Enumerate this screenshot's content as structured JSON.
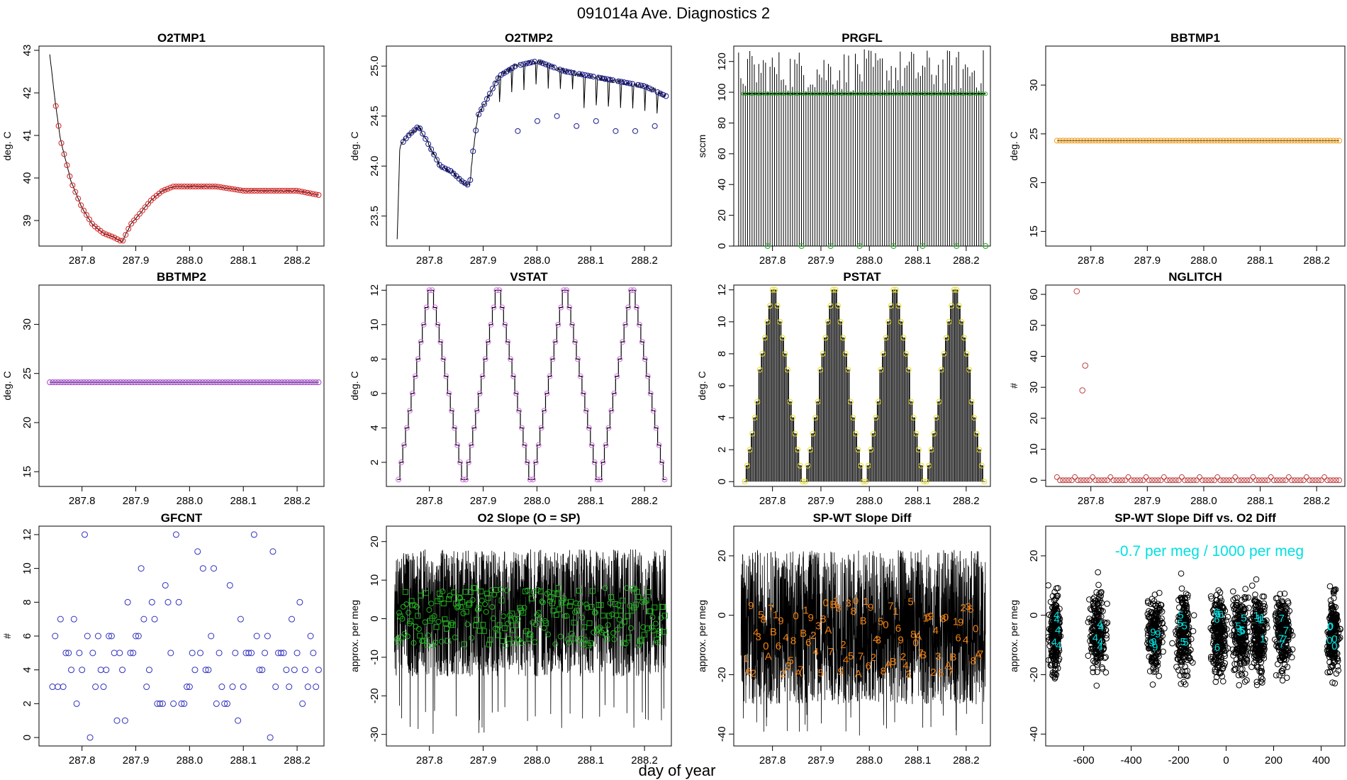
{
  "figure": {
    "title": "091014a   Ave. Diagnostics 2",
    "xlabel": "day of year"
  },
  "chart_data": [
    {
      "id": "o2tmp1",
      "type": "line",
      "title": "O2TMP1",
      "ylabel": "deg. C",
      "xlim": [
        287.72,
        288.25
      ],
      "ylim": [
        38.4,
        43.1
      ],
      "xticks": [
        287.8,
        287.9,
        288.0,
        288.1,
        288.2
      ],
      "xtick_labels": [
        "287.8",
        "287.9",
        "288.0",
        "288.1",
        "288.2"
      ],
      "yticks": [
        39,
        40,
        41,
        42,
        43
      ],
      "ytick_labels": [
        "39",
        "40",
        "41",
        "42",
        "43"
      ],
      "line_color": "#000000",
      "marker_color": "#d62020",
      "marker": "circle",
      "series": [
        {
          "x": [
            287.74,
            287.75,
            287.76,
            287.78,
            287.8,
            287.82,
            287.84,
            287.86,
            287.875,
            287.89,
            287.91,
            287.93,
            287.95,
            287.97,
            288.0,
            288.05,
            288.1,
            288.15,
            288.2,
            288.24
          ],
          "y": [
            42.9,
            41.8,
            40.9,
            39.9,
            39.3,
            38.9,
            38.7,
            38.6,
            38.5,
            38.9,
            39.2,
            39.5,
            39.7,
            39.8,
            39.8,
            39.8,
            39.7,
            39.7,
            39.7,
            39.6
          ]
        }
      ]
    },
    {
      "id": "o2tmp2",
      "type": "line",
      "title": "O2TMP2",
      "ylabel": "deg. C",
      "xlim": [
        287.72,
        288.25
      ],
      "ylim": [
        23.2,
        25.2
      ],
      "xticks": [
        287.8,
        287.9,
        288.0,
        288.1,
        288.2
      ],
      "xtick_labels": [
        "287.8",
        "287.9",
        "288.0",
        "288.1",
        "288.2"
      ],
      "yticks": [
        23.5,
        24.0,
        24.5,
        25.0
      ],
      "ytick_labels": [
        "23.5",
        "24.0",
        "24.5",
        "25.0"
      ],
      "line_color": "#000000",
      "marker_color": "#1a1a8c",
      "marker": "circle",
      "series": [
        {
          "x": [
            287.74,
            287.745,
            287.76,
            287.78,
            287.8,
            287.82,
            287.84,
            287.86,
            287.875,
            287.88,
            287.89,
            287.91,
            287.93,
            287.96,
            288.0,
            288.05,
            288.1,
            288.15,
            288.2,
            288.24
          ],
          "y": [
            23.25,
            24.2,
            24.3,
            24.4,
            24.2,
            24.0,
            23.95,
            23.85,
            23.8,
            24.1,
            24.5,
            24.7,
            24.9,
            25.0,
            25.05,
            24.95,
            24.9,
            24.85,
            24.8,
            24.7
          ]
        }
      ],
      "dip_minima": [
        24.35,
        24.4,
        24.45,
        24.5,
        24.4,
        24.45,
        24.35,
        24.45,
        24.5,
        24.4,
        24.45,
        24.35
      ]
    },
    {
      "id": "prgfl",
      "type": "bar",
      "title": "PRGFL",
      "ylabel": "sccm",
      "xlim": [
        287.72,
        288.25
      ],
      "ylim": [
        0,
        130
      ],
      "xticks": [
        287.8,
        287.9,
        288.0,
        288.1,
        288.2
      ],
      "xtick_labels": [
        "287.8",
        "287.9",
        "288.0",
        "288.1",
        "288.2"
      ],
      "yticks": [
        0,
        20,
        40,
        60,
        80,
        100,
        120
      ],
      "ytick_labels": [
        "0",
        "20",
        "40",
        "60",
        "80",
        "100",
        "120"
      ],
      "line_color": "#000000",
      "marker_color": "#22aa22",
      "marker": "circle",
      "bar_range": [
        100,
        128
      ],
      "typical_value": 99,
      "zero_points_x": [
        287.79,
        287.86,
        287.92,
        287.98,
        288.05,
        288.11,
        288.18,
        288.24
      ]
    },
    {
      "id": "bbtmp1",
      "type": "line",
      "title": "BBTMP1",
      "ylabel": "deg. C",
      "xlim": [
        287.72,
        288.25
      ],
      "ylim": [
        13.5,
        34
      ],
      "xticks": [
        287.8,
        287.9,
        288.0,
        288.1,
        288.2
      ],
      "xtick_labels": [
        "287.8",
        "287.9",
        "288.0",
        "288.1",
        "288.2"
      ],
      "yticks": [
        15,
        20,
        25,
        30
      ],
      "ytick_labels": [
        "15",
        "20",
        "25",
        "30"
      ],
      "line_color": "#000000",
      "marker_color": "#f0a020",
      "marker": "circle",
      "constant_value": 24.3
    },
    {
      "id": "bbtmp2",
      "type": "line",
      "title": "BBTMP2",
      "ylabel": "deg. C",
      "xlim": [
        287.72,
        288.25
      ],
      "ylim": [
        13.5,
        34
      ],
      "xticks": [
        287.8,
        287.9,
        288.0,
        288.1,
        288.2
      ],
      "xtick_labels": [
        "287.8",
        "287.9",
        "288.0",
        "288.1",
        "288.2"
      ],
      "yticks": [
        15,
        20,
        25,
        30
      ],
      "ytick_labels": [
        "15",
        "20",
        "25",
        "30"
      ],
      "line_color": "#000000",
      "marker_color": "#a040d0",
      "marker": "circle",
      "constant_value": 24.1
    },
    {
      "id": "vstat",
      "type": "line",
      "title": "VSTAT",
      "ylabel": "deg. C",
      "xlim": [
        287.72,
        288.25
      ],
      "ylim": [
        0.6,
        12.3
      ],
      "xticks": [
        287.8,
        287.9,
        288.0,
        288.1,
        288.2
      ],
      "xtick_labels": [
        "287.8",
        "287.9",
        "288.0",
        "288.1",
        "288.2"
      ],
      "yticks": [
        2,
        4,
        6,
        8,
        10,
        12
      ],
      "ytick_labels": [
        "2",
        "4",
        "6",
        "8",
        "10",
        "12"
      ],
      "line_color": "#000000",
      "marker_color": "#d070e0",
      "marker": "circle",
      "cycle_period": 0.125,
      "cycle_start": 287.74,
      "min_value": 1,
      "max_value": 12
    },
    {
      "id": "pstat",
      "type": "bar",
      "title": "PSTAT",
      "ylabel": "deg. C",
      "xlim": [
        287.72,
        288.25
      ],
      "ylim": [
        -0.3,
        12.3
      ],
      "xticks": [
        287.8,
        287.9,
        288.0,
        288.1,
        288.2
      ],
      "xtick_labels": [
        "287.8",
        "287.9",
        "288.0",
        "288.1",
        "288.2"
      ],
      "yticks": [
        0,
        2,
        4,
        6,
        8,
        10,
        12
      ],
      "ytick_labels": [
        "0",
        "2",
        "4",
        "6",
        "8",
        "10",
        "12"
      ],
      "line_color": "#000000",
      "marker_color": "#e8e020",
      "marker": "circle",
      "cycle_period": 0.125,
      "cycle_start": 287.74,
      "min_value": 0,
      "max_value": 12
    },
    {
      "id": "nglitch",
      "type": "scatter",
      "title": "NGLITCH",
      "ylabel": "#",
      "xlim": [
        287.72,
        288.25
      ],
      "ylim": [
        -2,
        63
      ],
      "xticks": [
        287.8,
        287.9,
        288.0,
        288.1,
        288.2
      ],
      "xtick_labels": [
        "287.8",
        "287.9",
        "288.0",
        "288.1",
        "288.2"
      ],
      "yticks": [
        0,
        10,
        20,
        30,
        40,
        50,
        60
      ],
      "ytick_labels": [
        "0",
        "10",
        "20",
        "30",
        "40",
        "50",
        "60"
      ],
      "marker_color": "#c04040",
      "marker": "circle",
      "series": [
        {
          "x": [
            287.775,
            287.785,
            287.79
          ],
          "y": [
            61,
            29,
            37
          ]
        }
      ],
      "baseline_value": 0
    },
    {
      "id": "gfcnt",
      "type": "scatter",
      "title": "GFCNT",
      "ylabel": "#",
      "xlim": [
        287.72,
        288.25
      ],
      "ylim": [
        -0.5,
        12.5
      ],
      "xticks": [
        287.8,
        287.9,
        288.0,
        288.1,
        288.2
      ],
      "xtick_labels": [
        "287.8",
        "287.9",
        "288.0",
        "288.1",
        "288.2"
      ],
      "yticks": [
        0,
        2,
        4,
        6,
        8,
        10,
        12
      ],
      "ytick_labels": [
        "0",
        "2",
        "4",
        "6",
        "8",
        "10",
        "12"
      ],
      "marker_color": "#3030c0",
      "marker": "circle",
      "series": [
        {
          "x": [
            287.745,
            287.75,
            287.755,
            287.76,
            287.765,
            287.77,
            287.775,
            287.78,
            287.785,
            287.79,
            287.795,
            287.8,
            287.805,
            287.81,
            287.815,
            287.82,
            287.825,
            287.83,
            287.835,
            287.84,
            287.845,
            287.85,
            287.855,
            287.86,
            287.865,
            287.87,
            287.875,
            287.88,
            287.885,
            287.89,
            287.895,
            287.9,
            287.905,
            287.91,
            287.915,
            287.92,
            287.925,
            287.93,
            287.935,
            287.94,
            287.945,
            287.95,
            287.955,
            287.96,
            287.965,
            287.97,
            287.975,
            287.98,
            287.985,
            287.99,
            287.995,
            288.0,
            288.005,
            288.01,
            288.015,
            288.02,
            288.025,
            288.03,
            288.035,
            288.04,
            288.045,
            288.05,
            288.055,
            288.06,
            288.065,
            288.07,
            288.075,
            288.08,
            288.085,
            288.09,
            288.095,
            288.1,
            288.105,
            288.11,
            288.115,
            288.12,
            288.125,
            288.13,
            288.135,
            288.14,
            288.145,
            288.15,
            288.155,
            288.16,
            288.165,
            288.17,
            288.175,
            288.18,
            288.185,
            288.19,
            288.195,
            288.2,
            288.205,
            288.21,
            288.215,
            288.22,
            288.225,
            288.23,
            288.235,
            288.24
          ],
          "y": [
            3,
            6,
            3,
            7,
            3,
            5,
            5,
            4,
            7,
            2,
            5,
            4,
            12,
            6,
            0,
            5,
            3,
            6,
            4,
            3,
            4,
            6,
            6,
            5,
            1,
            5,
            4,
            1,
            8,
            5,
            5,
            6,
            6,
            10,
            7,
            3,
            4,
            8,
            7,
            2,
            2,
            2,
            9,
            8,
            5,
            2,
            12,
            8,
            2,
            2,
            3,
            3,
            5,
            4,
            11,
            5,
            10,
            4,
            4,
            6,
            10,
            2,
            5,
            3,
            2,
            2,
            9,
            3,
            5,
            1,
            7,
            3,
            5,
            5,
            5,
            12,
            6,
            4,
            4,
            5,
            6,
            0,
            11,
            3,
            5,
            5,
            5,
            4,
            3,
            7,
            4,
            5,
            8,
            2,
            4,
            3,
            6,
            5,
            3,
            4
          ]
        }
      ]
    },
    {
      "id": "o2slope",
      "type": "line",
      "title": "O2 Slope (O = SP)",
      "ylabel": "approx. per meg",
      "xlim": [
        287.72,
        288.25
      ],
      "ylim": [
        -33,
        24
      ],
      "xticks": [
        287.8,
        287.9,
        288.0,
        288.1,
        288.2
      ],
      "xtick_labels": [
        "287.8",
        "287.9",
        "288.0",
        "288.1",
        "288.2"
      ],
      "yticks": [
        -30,
        -20,
        -10,
        0,
        10,
        20
      ],
      "ytick_labels": [
        "-30",
        "-20",
        "-10",
        "0",
        "10",
        "20"
      ],
      "line_color": "#000000",
      "marker_color": "#20b020",
      "band": [
        -15,
        18
      ],
      "marker_range": [
        -7,
        8
      ]
    },
    {
      "id": "spwt",
      "type": "line",
      "title": "SP-WT Slope Diff",
      "ylabel": "approx. per meg",
      "xlim": [
        287.72,
        288.25
      ],
      "ylim": [
        -44,
        30
      ],
      "xticks": [
        287.8,
        287.9,
        288.0,
        288.1,
        288.2
      ],
      "xtick_labels": [
        "287.8",
        "287.9",
        "288.0",
        "288.1",
        "288.2"
      ],
      "yticks": [
        -40,
        -20,
        0,
        20
      ],
      "ytick_labels": [
        "-40",
        "-20",
        "0",
        "20"
      ],
      "line_color": "#000000",
      "marker_color": "#f08010",
      "band": [
        -30,
        22
      ],
      "label_range": [
        -20,
        5
      ],
      "label_chars": [
        "1",
        "6",
        "9",
        "2",
        "4",
        "3",
        "5",
        "8",
        "0",
        "A",
        "7",
        "B"
      ]
    },
    {
      "id": "spwt_vs_o2",
      "type": "scatter",
      "title": "SP-WT Slope Diff vs. O2 Diff",
      "ylabel": "approx. per meg",
      "xlim": [
        -760,
        500
      ],
      "ylim": [
        -44,
        30
      ],
      "xticks": [
        -600,
        -400,
        -200,
        0,
        200,
        400
      ],
      "xtick_labels": [
        "-600",
        "-400",
        "-200",
        "0",
        "200",
        "400"
      ],
      "yticks": [
        -40,
        -20,
        0,
        20
      ],
      "ytick_labels": [
        "-40",
        "-20",
        "0",
        "20"
      ],
      "marker_color": "#000000",
      "annotation_color": "#00e0e0",
      "annotation": "-0.7 per meg / 1000 per meg",
      "cluster_centers": [
        -720,
        -540,
        -300,
        -180,
        -30,
        60,
        140,
        240,
        450
      ],
      "cluster_labels": [
        "4",
        "4",
        "9",
        "5",
        "6",
        "5",
        "1",
        "7",
        "0"
      ]
    }
  ]
}
